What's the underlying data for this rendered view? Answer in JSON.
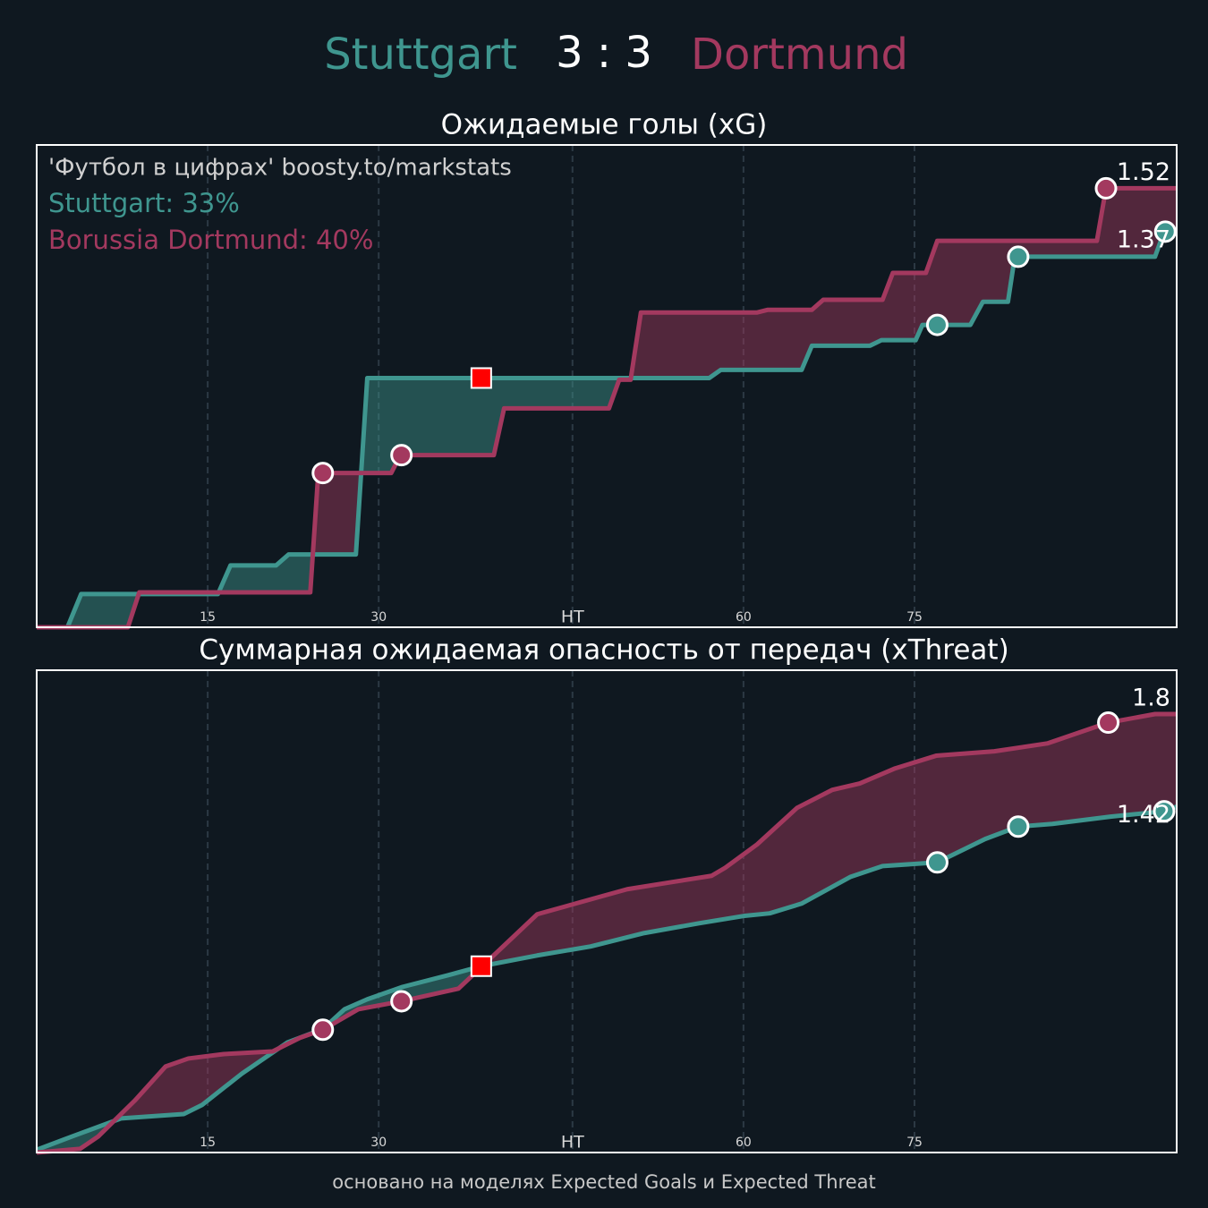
{
  "header": {
    "home": "Stuttgart",
    "home_color": "#3f968f",
    "score": "3 : 3",
    "away": "Dortmund",
    "away_color": "#a3395f"
  },
  "chart_data": [
    {
      "type": "line",
      "title": "Ожидаемые голы (xG)",
      "annotations": [
        {
          "text": "'Футбол в цифрах' boosty.to/markstats",
          "color": "#d0d0d0"
        },
        {
          "text": "Stuttgart: 33%",
          "color": "#3f968f"
        },
        {
          "text": "Borussia Dortmund: 40%",
          "color": "#a3395f"
        }
      ],
      "xlim": [
        0,
        100
      ],
      "ylim": [
        0,
        1.67
      ],
      "xticks": [
        15,
        30,
        {
          "value": 47,
          "label": "HT"
        },
        {
          "value": 62,
          "label": "60"
        },
        {
          "value": 77,
          "label": "75"
        }
      ],
      "grid": true,
      "series": [
        {
          "color": "#3f968f",
          "x": [
            0,
            2.7,
            3.9,
            15.9,
            17.0,
            21.0,
            22.1,
            28.0,
            29.0,
            59.0,
            60.0,
            67.1,
            68.0,
            73.1,
            74.1,
            77.1,
            77.7,
            81.9,
            83.0,
            85.2,
            85.8,
            98.1,
            98.9,
            100
          ],
          "values": [
            0,
            0,
            0.115,
            0.115,
            0.214,
            0.214,
            0.252,
            0.252,
            0.863,
            0.863,
            0.891,
            0.891,
            0.975,
            0.975,
            0.994,
            0.994,
            1.047,
            1.047,
            1.127,
            1.127,
            1.283,
            1.283,
            1.37,
            1.37
          ],
          "goals": {
            "x": [
              79.0,
              86.1,
              99.0
            ],
            "values": [
              1.047,
              1.283,
              1.37
            ]
          }
        },
        {
          "color": "#a3395f",
          "x": [
            0,
            8.0,
            9.0,
            24.0,
            24.7,
            31.1,
            31.9,
            40.1,
            41.0,
            50.2,
            51.1,
            52.1,
            53.0,
            63.2,
            64.1,
            68.0,
            69.0,
            74.2,
            75.1,
            78.0,
            79.0,
            93.0,
            93.8,
            100
          ],
          "values": [
            0,
            0,
            0.121,
            0.121,
            0.534,
            0.534,
            0.596,
            0.596,
            0.758,
            0.758,
            0.857,
            0.857,
            1.09,
            1.09,
            1.099,
            1.099,
            1.134,
            1.134,
            1.227,
            1.227,
            1.338,
            1.338,
            1.52,
            1.52
          ],
          "goals": {
            "x": [
              25.1,
              32.0,
              93.8
            ],
            "values": [
              0.534,
              0.596,
              1.52
            ]
          }
        }
      ],
      "marker": {
        "x": 39.0,
        "value": 0.863,
        "color": "#ff0000"
      }
    },
    {
      "type": "line",
      "title": "Суммарная ожидаемая опасность от передач (xThreat)",
      "xlim": [
        0,
        100
      ],
      "ylim": [
        0,
        1.98
      ],
      "xticks": [
        15,
        30,
        {
          "value": 47,
          "label": "HT"
        },
        {
          "value": 62,
          "label": "60"
        },
        {
          "value": 77,
          "label": "75"
        }
      ],
      "grid": true,
      "series": [
        {
          "color": "#3f968f",
          "x": [
            0,
            3.1,
            7.4,
            12.9,
            14.5,
            18.0,
            22.0,
            25.1,
            27.0,
            29.0,
            32.1,
            36.1,
            39.0,
            43.9,
            48.6,
            53.3,
            58.1,
            62.0,
            64.3,
            67.1,
            71.4,
            74.2,
            79.0,
            83.2,
            86.1,
            89.1,
            94.2,
            98.9,
            100
          ],
          "values": [
            0.011,
            0.066,
            0.14,
            0.158,
            0.195,
            0.324,
            0.452,
            0.507,
            0.588,
            0.629,
            0.68,
            0.728,
            0.765,
            0.809,
            0.846,
            0.901,
            0.941,
            0.971,
            0.982,
            1.022,
            1.132,
            1.176,
            1.191,
            1.287,
            1.338,
            1.349,
            1.379,
            1.401,
            1.42
          ],
          "goals": {
            "x": [
              79.0,
              86.1,
              98.9
            ],
            "values": [
              1.191,
              1.338,
              1.401
            ]
          }
        },
        {
          "color": "#a3395f",
          "x": [
            0,
            3.8,
            5.4,
            8.6,
            11.3,
            13.3,
            16.4,
            20.7,
            23.1,
            25.1,
            28.2,
            32.0,
            37.0,
            38.9,
            43.9,
            47.8,
            51.8,
            55.7,
            59.2,
            60.4,
            63.2,
            66.7,
            69.8,
            72.2,
            75.3,
            78.9,
            84.0,
            88.7,
            94.0,
            98.1,
            100
          ],
          "values": [
            0,
            0.015,
            0.066,
            0.213,
            0.353,
            0.386,
            0.404,
            0.415,
            0.471,
            0.504,
            0.588,
            0.621,
            0.673,
            0.757,
            0.978,
            1.029,
            1.081,
            1.11,
            1.136,
            1.169,
            1.265,
            1.415,
            1.489,
            1.515,
            1.577,
            1.629,
            1.647,
            1.68,
            1.765,
            1.8,
            1.8
          ],
          "goals": {
            "x": [
              25.1,
              32.0,
              94.0
            ],
            "values": [
              0.504,
              0.621,
              1.765
            ]
          }
        }
      ],
      "marker": {
        "x": 39.0,
        "value": 0.765,
        "color": "#ff0000"
      }
    }
  ],
  "footer": "основано на моделях Expected Goals и Expected Threat"
}
